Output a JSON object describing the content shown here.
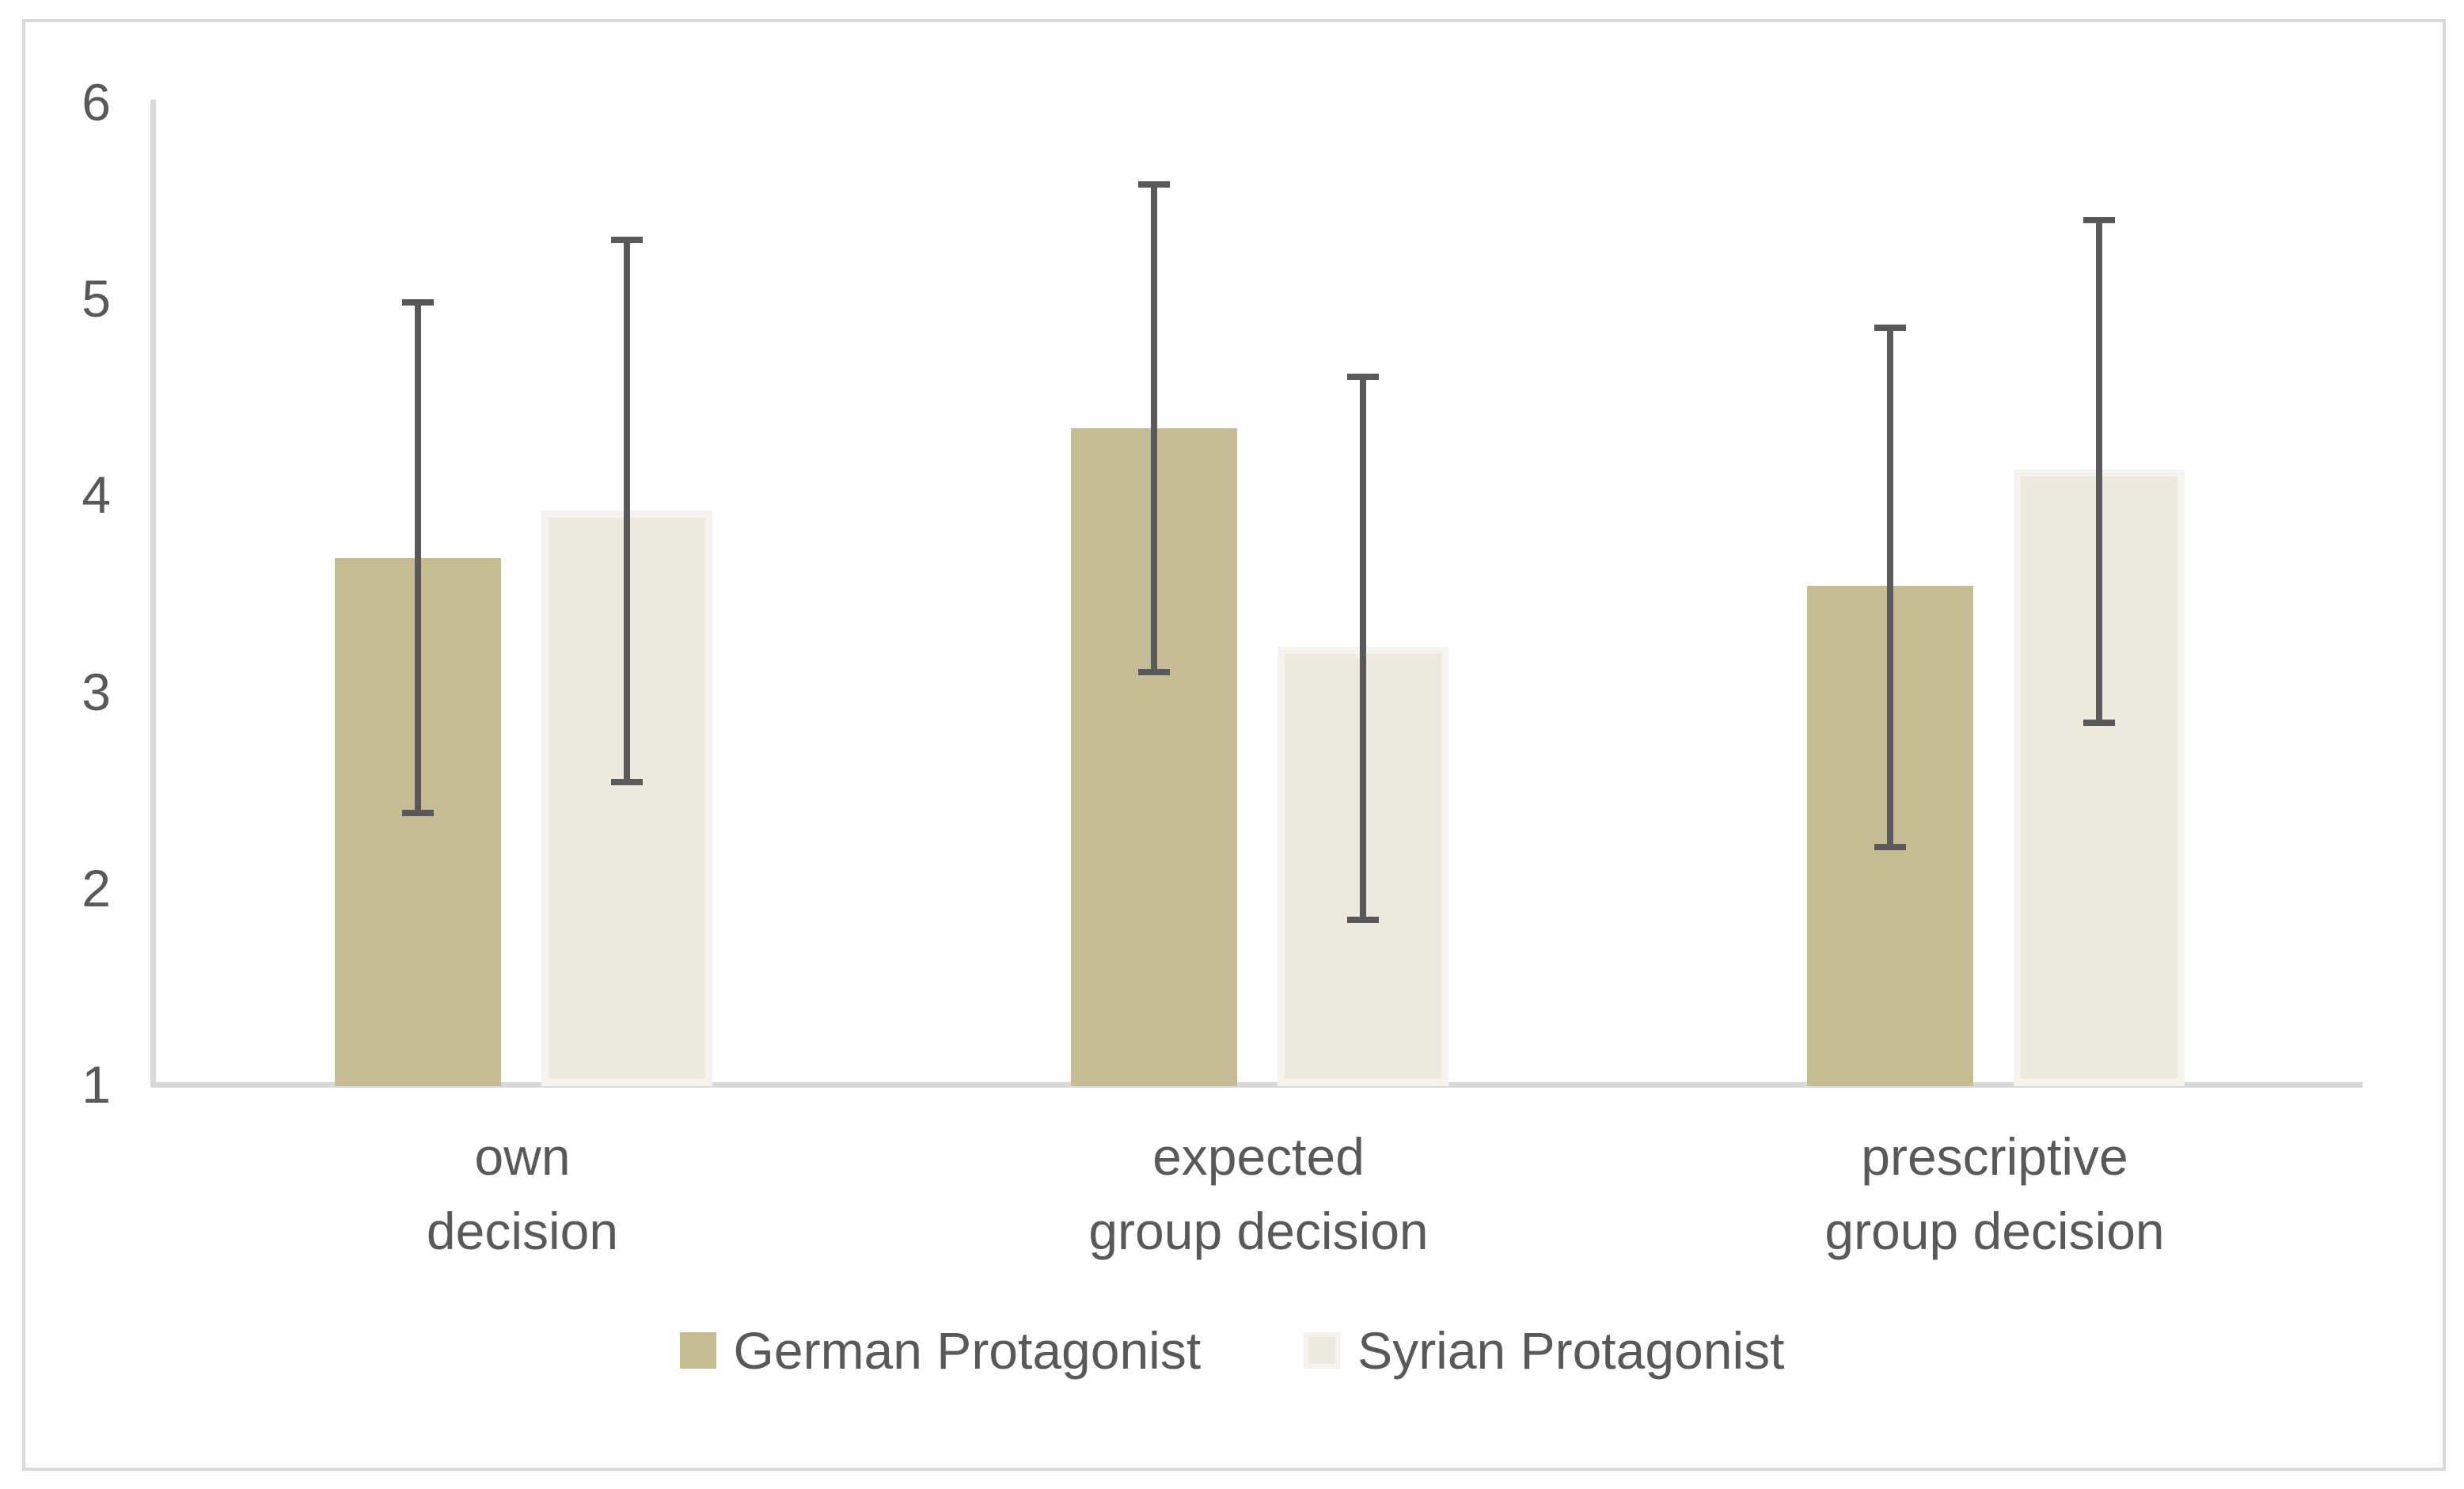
{
  "chart_data": {
    "type": "bar",
    "title": "",
    "xlabel": "",
    "ylabel": "",
    "categories": [
      "own\ndecision",
      "expected\ngroup decision",
      "prescriptive\ngroup decision"
    ],
    "series": [
      {
        "name": "German Protagonist",
        "color": "#C5BC94",
        "values": [
          3.68,
          4.34,
          3.54
        ],
        "error_low": [
          2.38,
          3.1,
          2.21
        ],
        "error_high": [
          4.98,
          5.58,
          4.85
        ]
      },
      {
        "name": "Syrian Protagonist",
        "color": "#ECE9DD",
        "border_color": "#F4F3EF",
        "values": [
          3.92,
          3.23,
          4.13
        ],
        "error_low": [
          2.54,
          1.84,
          2.84
        ],
        "error_high": [
          5.3,
          4.6,
          5.4
        ]
      }
    ],
    "ylim": [
      1,
      6
    ],
    "yticks": [
      1,
      2,
      3,
      4,
      5,
      6
    ],
    "grid": false,
    "legend_position": "bottom",
    "error_bar_color": "#595959",
    "axis_color": "#D9D9D9",
    "text_color": "#595959",
    "plot_background": "#FFFFFF"
  }
}
